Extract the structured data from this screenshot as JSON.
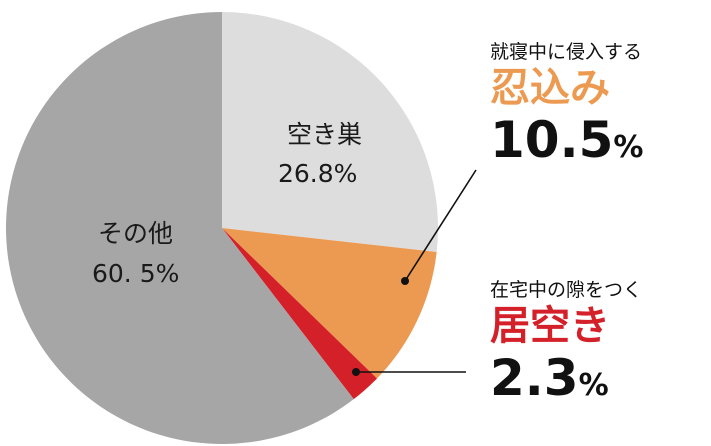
{
  "chart_data": {
    "type": "pie",
    "slices": [
      {
        "label": "空き巣",
        "value": 26.8,
        "value_text": "26.8%",
        "color": "#dddddd"
      },
      {
        "label": "忍込み",
        "value": 10.5,
        "value_text": "10.5",
        "unit": "%",
        "description": "就寝中に侵入する",
        "color": "#ec9a51",
        "label_color": "#ec9a51"
      },
      {
        "label": "居空き",
        "value": 2.3,
        "value_text": "2.3",
        "unit": "%",
        "description": "在宅中の隙をつく",
        "color": "#d42029",
        "label_color": "#d42029"
      },
      {
        "label": "その他",
        "value": 60.5,
        "value_text": "60. 5%",
        "color": "#a6a6a6"
      }
    ],
    "start_angle": "12 o'clock",
    "direction": "clockwise"
  }
}
